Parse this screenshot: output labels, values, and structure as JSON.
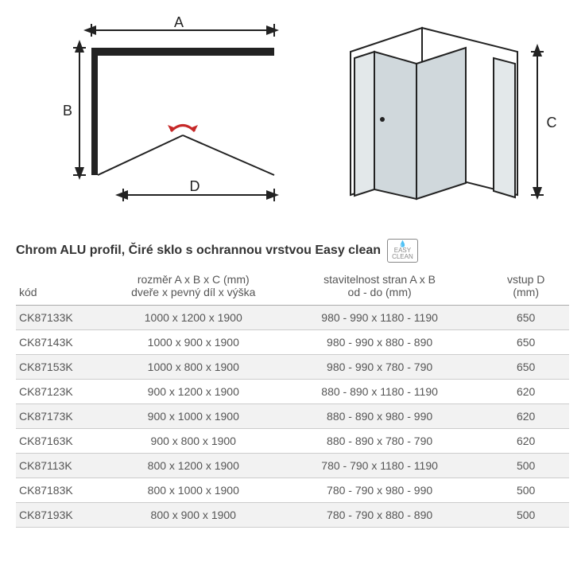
{
  "diagram": {
    "labels": {
      "A": "A",
      "B": "B",
      "C": "C",
      "D": "D"
    },
    "stroke_color": "#222222",
    "arrow_color": "#c62828",
    "glass_color": "#d0d8dc"
  },
  "heading": "Chrom ALU profil, Čiré sklo s ochrannou vrstvou Easy clean",
  "badge_line1": "EASY",
  "badge_line2": "CLEAN",
  "table": {
    "columns": {
      "kod": "kód",
      "rozmer_l1": "rozměr A x B x C (mm)",
      "rozmer_l2": "dveře x pevný díl x výška",
      "stav_l1": "stavitelnost stran A x B",
      "stav_l2": "od - do (mm)",
      "vstup_l1": "vstup D",
      "vstup_l2": "(mm)"
    },
    "rows": [
      {
        "kod": "CK87133K",
        "rozmer": "1000 x 1200 x 1900",
        "stav": "980 - 990 x 1180 - 1190",
        "vstup": "650"
      },
      {
        "kod": "CK87143K",
        "rozmer": "1000 x 900 x 1900",
        "stav": "980 - 990 x 880 - 890",
        "vstup": "650"
      },
      {
        "kod": "CK87153K",
        "rozmer": "1000 x 800 x 1900",
        "stav": "980 - 990 x 780 - 790",
        "vstup": "650"
      },
      {
        "kod": "CK87123K",
        "rozmer": "900 x 1200 x 1900",
        "stav": "880 - 890 x 1180 - 1190",
        "vstup": "620"
      },
      {
        "kod": "CK87173K",
        "rozmer": "900 x 1000 x 1900",
        "stav": "880 - 890 x 980 - 990",
        "vstup": "620"
      },
      {
        "kod": "CK87163K",
        "rozmer": "900 x 800 x 1900",
        "stav": "880 - 890 x 780 - 790",
        "vstup": "620"
      },
      {
        "kod": "CK87113K",
        "rozmer": "800 x 1200 x 1900",
        "stav": "780 - 790 x 1180 - 1190",
        "vstup": "500"
      },
      {
        "kod": "CK87183K",
        "rozmer": "800 x 1000 x 1900",
        "stav": "780 - 790 x 980 - 990",
        "vstup": "500"
      },
      {
        "kod": "CK87193K",
        "rozmer": "800 x 900 x 1900",
        "stav": "780 - 790 x 880 - 890",
        "vstup": "500"
      }
    ]
  }
}
